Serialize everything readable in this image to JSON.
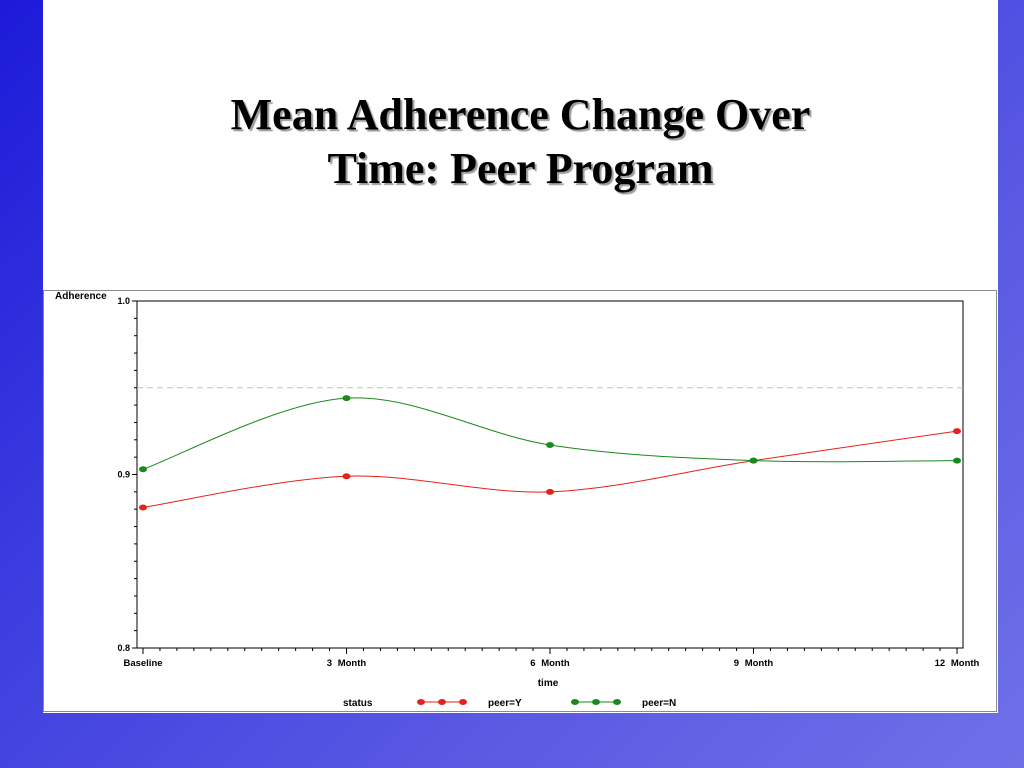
{
  "slide": {
    "title_line1": "Mean Adherence Change Over",
    "title_line2": "Time: Peer Program"
  },
  "colors": {
    "background": "#3a3ad9",
    "peer_y": "#e3231b",
    "peer_n": "#1a8a1e",
    "reference_line": "#9fd69f"
  },
  "chart_data": {
    "type": "line",
    "ylabel": "Adherence",
    "xlabel": "time",
    "ylim": [
      0.8,
      1.0
    ],
    "yticks": [
      "0.8",
      "0.9",
      "1.0"
    ],
    "categories": [
      "Baseline",
      "3 Month",
      "6 Month",
      "9 Month",
      "12 Month"
    ],
    "reference_line": 0.95,
    "legend": {
      "title": "status",
      "placement": "bottom"
    },
    "series": [
      {
        "name": "peer=Y",
        "color": "#e3231b",
        "values": [
          0.881,
          0.899,
          0.89,
          0.908,
          0.925
        ]
      },
      {
        "name": "peer=N",
        "color": "#1a8a1e",
        "values": [
          0.903,
          0.944,
          0.917,
          0.908,
          0.908
        ]
      }
    ]
  }
}
